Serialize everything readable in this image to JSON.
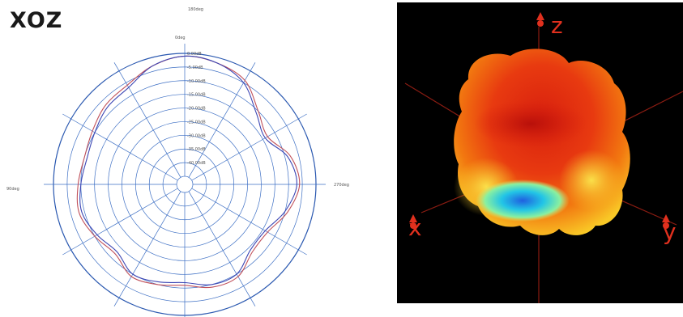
{
  "chart_data": [
    {
      "type": "polar",
      "title": "XOZ",
      "angle_labels": {
        "top_outer": "180deg",
        "top": "0deg",
        "left": "90deg",
        "right": "270deg"
      },
      "radial_ticks": [
        "0.00dB",
        "-5.00dB",
        "-10.00dB",
        "-15.00dB",
        "-20.00dB",
        "-25.00dB",
        "-30.00dB",
        "-35.00dB",
        "-40.00dB"
      ],
      "rlim_db": [
        -45,
        0
      ],
      "grid": true,
      "series": [
        {
          "color": "#c0505a",
          "angles_deg": [
            0,
            15,
            30,
            45,
            60,
            75,
            90,
            105,
            120,
            135,
            150,
            165,
            180,
            195,
            210,
            225,
            240,
            255,
            270,
            285,
            300,
            315,
            330,
            345
          ],
          "values_db": [
            -1,
            -2,
            -4,
            -10,
            -13,
            -8,
            -6,
            -9,
            -13,
            -13,
            -9,
            -9,
            -11,
            -10,
            -9,
            -12,
            -10,
            -8,
            -9,
            -10,
            -9,
            -7,
            -6,
            -3
          ]
        },
        {
          "color": "#3c46b4",
          "angles_deg": [
            0,
            15,
            30,
            45,
            60,
            75,
            90,
            105,
            120,
            135,
            150,
            165,
            180,
            195,
            210,
            225,
            240,
            255,
            270,
            285,
            300,
            315,
            330,
            345
          ],
          "values_db": [
            -1,
            -2,
            -5,
            -11,
            -14,
            -9,
            -7,
            -10,
            -14,
            -14,
            -10,
            -10,
            -12,
            -11,
            -10,
            -13,
            -11,
            -9,
            -10,
            -11,
            -10,
            -8,
            -7,
            -3
          ]
        }
      ]
    },
    {
      "type": "3d-radiation-pattern",
      "axes": [
        "z",
        "x",
        "y"
      ],
      "colors": {
        "background": "#000000",
        "axis_lines": "#8a1c12",
        "axis_labels": "#e0301e"
      }
    }
  ]
}
